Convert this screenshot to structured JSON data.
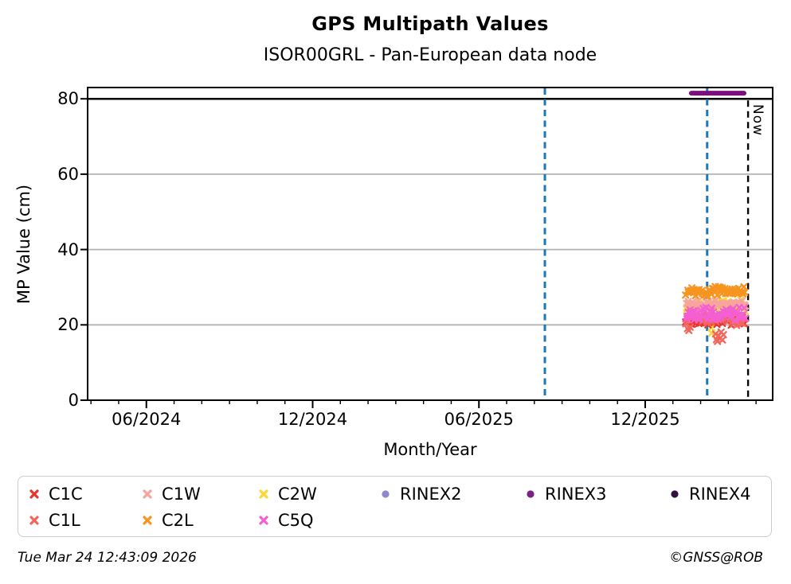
{
  "title": "GPS Multipath Values",
  "subtitle": "ISOR00GRL - Pan-European data node",
  "now_label": "Now",
  "footer": {
    "timestamp": "Tue Mar 24 12:43:09 2026",
    "credit": "©GNSS@ROB"
  },
  "chart_data": {
    "type": "scatter",
    "title": "GPS Multipath Values",
    "subtitle": "ISOR00GRL - Pan-European data node",
    "xlabel": "Month/Year",
    "ylabel": "MP Value (cm)",
    "ylim": [
      0,
      83
    ],
    "xlim_decimal_year": [
      2024.24,
      2026.3
    ],
    "grid": {
      "y_values": [
        20,
        40,
        60
      ],
      "color": "#b3b3b3",
      "on": true
    },
    "limit_line": {
      "y": 80,
      "color": "#000000"
    },
    "y_ticks": [
      {
        "label": "0",
        "value": 0
      },
      {
        "label": "20",
        "value": 20
      },
      {
        "label": "40",
        "value": 40
      },
      {
        "label": "60",
        "value": 60
      },
      {
        "label": "80",
        "value": 80
      }
    ],
    "x_ticks_major": [
      {
        "label": "06/2024",
        "value": 2024.4167
      },
      {
        "label": "12/2024",
        "value": 2024.9167
      },
      {
        "label": "06/2025",
        "value": 2025.4167
      },
      {
        "label": "12/2025",
        "value": 2025.9167
      }
    ],
    "x_minor_ticks": {
      "start": 2024.25,
      "step": 0.0833333,
      "end": 2026.2917
    },
    "vlines": [
      {
        "name": "event-line-1",
        "x": 2025.615,
        "color": "#1f77b4",
        "style": "dashed",
        "width": 3,
        "label": ""
      },
      {
        "name": "event-line-2",
        "x": 2026.103,
        "color": "#1f77b4",
        "style": "dashed",
        "width": 3,
        "label": ""
      },
      {
        "name": "now-line",
        "x": 2026.226,
        "color": "#000000",
        "style": "dashed",
        "width": 2.4,
        "label": "Now"
      }
    ],
    "rinex_segment": {
      "series": "RINEX3",
      "y": 81.5,
      "x_start": 2026.0555,
      "x_end": 2026.2137,
      "color": "#7a0f7e",
      "width": 6
    },
    "series": [
      {
        "name": "C1C",
        "color": "#e5352f",
        "marker": "x",
        "n": 46,
        "seed": 19,
        "x_start": 2026.041,
        "x_end": 2026.216,
        "y_mean": 21.2,
        "y_spread": 1.9,
        "trend": [
          [
            2026.041,
            21.2
          ],
          [
            2026.216,
            21.2
          ]
        ],
        "outliers": []
      },
      {
        "name": "C1L",
        "color": "#f4665c",
        "marker": "x",
        "n": 46,
        "seed": 23,
        "x_start": 2026.041,
        "x_end": 2026.216,
        "y_mean": 21.6,
        "y_spread": 2.0,
        "trend": [
          [
            2026.041,
            21.6
          ],
          [
            2026.216,
            21.6
          ]
        ],
        "outliers": [
          [
            2026.044,
            19.0
          ],
          [
            2026.048,
            18.5
          ],
          [
            2026.052,
            19.4
          ],
          [
            2026.128,
            17.6
          ],
          [
            2026.131,
            16.1
          ],
          [
            2026.134,
            15.6
          ],
          [
            2026.137,
            17.1
          ],
          [
            2026.141,
            16.4
          ],
          [
            2026.145,
            18.1
          ],
          [
            2026.149,
            16.0
          ],
          [
            2026.152,
            17.4
          ]
        ]
      },
      {
        "name": "C1W",
        "color": "#f7a49e",
        "marker": "x",
        "n": 40,
        "seed": 11,
        "x_start": 2026.041,
        "x_end": 2026.216,
        "y_mean": 25.6,
        "y_spread": 1.3,
        "trend": [
          [
            2026.041,
            25.6
          ],
          [
            2026.216,
            25.6
          ]
        ],
        "outliers": []
      },
      {
        "name": "C2L",
        "color": "#f79420",
        "marker": "x",
        "n": 62,
        "seed": 7,
        "x_start": 2026.041,
        "x_end": 2026.216,
        "y_mean": 28.8,
        "y_spread": 1.5,
        "trend": [
          [
            2026.041,
            29.2
          ],
          [
            2026.09,
            28.8
          ],
          [
            2026.104,
            27.3
          ],
          [
            2026.12,
            29.0
          ],
          [
            2026.216,
            28.8
          ]
        ],
        "outliers": []
      },
      {
        "name": "C2W",
        "color": "#ffd630",
        "marker": "x",
        "n": 48,
        "seed": 13,
        "x_start": 2026.041,
        "x_end": 2026.216,
        "y_mean": 24.8,
        "y_spread": 2.0,
        "trend": [
          [
            2026.041,
            24.8
          ],
          [
            2026.216,
            24.8
          ]
        ],
        "outliers": [
          [
            2026.1155,
            19.2
          ],
          [
            2026.117,
            17.8
          ]
        ]
      },
      {
        "name": "C5Q",
        "color": "#f45fd3",
        "marker": "x",
        "n": 55,
        "seed": 17,
        "x_start": 2026.041,
        "x_end": 2026.216,
        "y_mean": 23.2,
        "y_spread": 2.3,
        "trend": [
          [
            2026.041,
            23.2
          ],
          [
            2026.216,
            23.2
          ]
        ],
        "outliers": []
      }
    ],
    "draw_order": [
      "C2W",
      "C1C",
      "C1L",
      "C1W",
      "C5Q",
      "C2L"
    ],
    "legend_position": "bottom",
    "legend_columns": [
      [
        {
          "label": "C1C",
          "marker": "x",
          "color": "#e5352f"
        },
        {
          "label": "C1L",
          "marker": "x",
          "color": "#f4665c"
        }
      ],
      [
        {
          "label": "C1W",
          "marker": "x",
          "color": "#f7a49e"
        },
        {
          "label": "C2L",
          "marker": "x",
          "color": "#f79420"
        }
      ],
      [
        {
          "label": "C2W",
          "marker": "x",
          "color": "#ffd630"
        },
        {
          "label": "C5Q",
          "marker": "x",
          "color": "#f45fd3"
        }
      ],
      [
        {
          "label": "RINEX2",
          "marker": "dot",
          "color": "#8f88cc"
        }
      ],
      [
        {
          "label": "RINEX3",
          "marker": "dot",
          "color": "#7a2182"
        }
      ],
      [
        {
          "label": "RINEX4",
          "marker": "dot",
          "color": "#331040"
        }
      ]
    ]
  }
}
